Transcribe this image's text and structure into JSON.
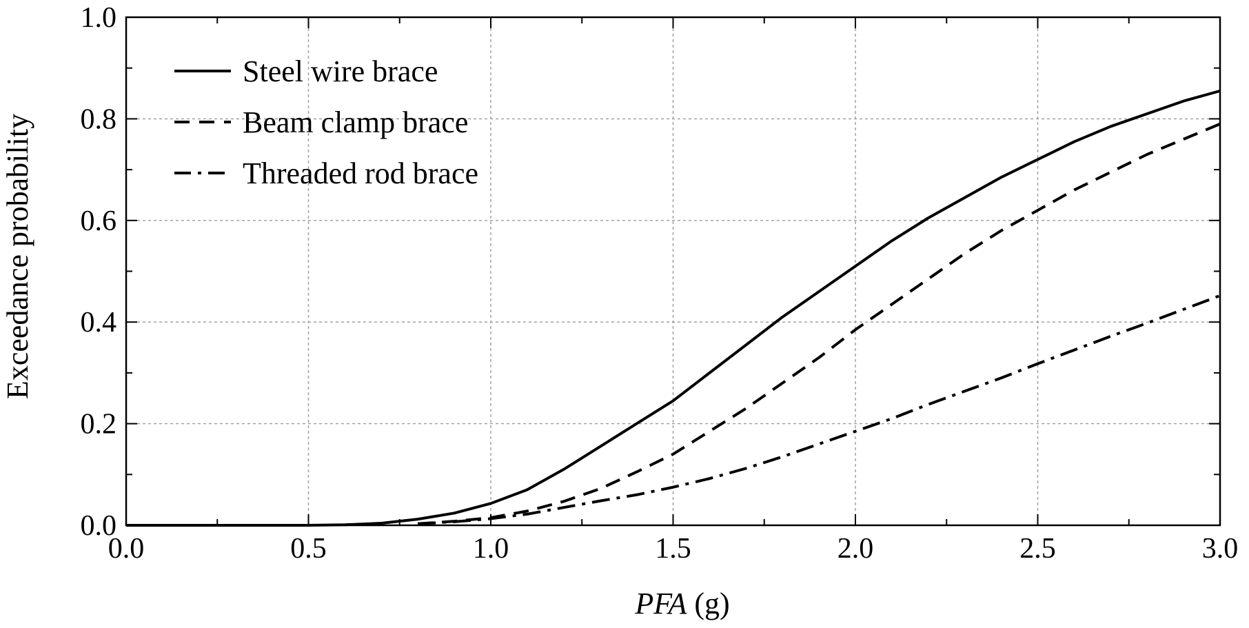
{
  "chart_data": {
    "type": "line",
    "title": "",
    "xlabel": "PFA (g)",
    "xlabel_italic_part": "PFA",
    "xlabel_unit_part": " (g)",
    "ylabel": "Exceedance probability",
    "xlim": [
      0.0,
      3.0
    ],
    "ylim": [
      0.0,
      1.0
    ],
    "x_ticks": [
      "0.0",
      "0.5",
      "1.0",
      "1.5",
      "2.0",
      "2.5",
      "3.0"
    ],
    "y_ticks": [
      "0.0",
      "0.2",
      "0.4",
      "0.6",
      "0.8",
      "1.0"
    ],
    "grid": true,
    "legend_position": "top-left",
    "x": [
      0.0,
      0.5,
      0.6,
      0.7,
      0.8,
      0.9,
      1.0,
      1.1,
      1.2,
      1.3,
      1.4,
      1.5,
      1.6,
      1.7,
      1.8,
      1.9,
      2.0,
      2.1,
      2.2,
      2.3,
      2.4,
      2.5,
      2.6,
      2.7,
      2.8,
      2.9,
      3.0
    ],
    "series": [
      {
        "name": "Steel wire brace",
        "line_style": "solid",
        "values": [
          0.0,
          0.0,
          0.001,
          0.004,
          0.012,
          0.024,
          0.043,
          0.07,
          0.11,
          0.155,
          0.2,
          0.245,
          0.3,
          0.355,
          0.41,
          0.46,
          0.51,
          0.56,
          0.605,
          0.645,
          0.685,
          0.72,
          0.755,
          0.785,
          0.81,
          0.835,
          0.855
        ]
      },
      {
        "name": "Beam clamp brace",
        "line_style": "dashed",
        "values": [
          0.0,
          0.0,
          0.0,
          0.0,
          0.003,
          0.008,
          0.015,
          0.028,
          0.047,
          0.072,
          0.105,
          0.14,
          0.185,
          0.23,
          0.28,
          0.33,
          0.385,
          0.435,
          0.485,
          0.535,
          0.58,
          0.62,
          0.66,
          0.695,
          0.73,
          0.76,
          0.79
        ]
      },
      {
        "name": "Threaded rod brace",
        "line_style": "dashdot",
        "values": [
          0.0,
          0.0,
          0.0,
          0.0,
          0.003,
          0.007,
          0.013,
          0.022,
          0.035,
          0.048,
          0.06,
          0.075,
          0.092,
          0.112,
          0.135,
          0.16,
          0.185,
          0.21,
          0.238,
          0.264,
          0.29,
          0.318,
          0.345,
          0.372,
          0.398,
          0.425,
          0.452
        ]
      }
    ]
  }
}
